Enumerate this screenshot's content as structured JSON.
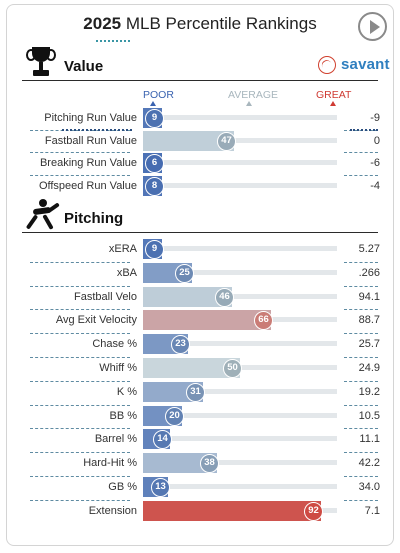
{
  "header": {
    "year": "2025",
    "title_rest": "MLB Percentile Rankings"
  },
  "icons": {
    "play": "play-icon",
    "trophy": "trophy-icon",
    "pitcher": "pitcher-icon",
    "savant": "baseball-icon"
  },
  "value_section": {
    "label": "Value",
    "brand": "savant",
    "scale": {
      "poor": "POOR",
      "average": "AVERAGE",
      "great": "GREAT"
    },
    "rows": [
      {
        "label": "Pitching Run Value",
        "percentile": 9,
        "value": "-9"
      },
      {
        "label": "Fastball Run Value",
        "percentile": 47,
        "value": "0"
      },
      {
        "label": "Breaking Run Value",
        "percentile": 6,
        "value": "-6"
      },
      {
        "label": "Offspeed Run Value",
        "percentile": 8,
        "value": "-4"
      }
    ]
  },
  "pitching_section": {
    "label": "Pitching",
    "rows": [
      {
        "label": "xERA",
        "percentile": 9,
        "value": "5.27"
      },
      {
        "label": "xBA",
        "percentile": 25,
        "value": ".266"
      },
      {
        "label": "Fastball Velo",
        "percentile": 46,
        "value": "94.1"
      },
      {
        "label": "Avg Exit Velocity",
        "percentile": 66,
        "value": "88.7"
      },
      {
        "label": "Chase %",
        "percentile": 23,
        "value": "25.7"
      },
      {
        "label": "Whiff %",
        "percentile": 50,
        "value": "24.9"
      },
      {
        "label": "K %",
        "percentile": 31,
        "value": "19.2"
      },
      {
        "label": "BB %",
        "percentile": 20,
        "value": "10.5"
      },
      {
        "label": "Barrel %",
        "percentile": 14,
        "value": "11.1"
      },
      {
        "label": "Hard-Hit %",
        "percentile": 38,
        "value": "42.2"
      },
      {
        "label": "GB %",
        "percentile": 13,
        "value": "34.0"
      },
      {
        "label": "Extension",
        "percentile": 92,
        "value": "7.1"
      }
    ]
  },
  "colors": {
    "poor": "#3a63b0",
    "average": "#c9d6dc",
    "great": "#cf3b33",
    "scale_poor": "#3a63b0",
    "scale_average": "#a8b6bd",
    "scale_great": "#cf3b33"
  }
}
